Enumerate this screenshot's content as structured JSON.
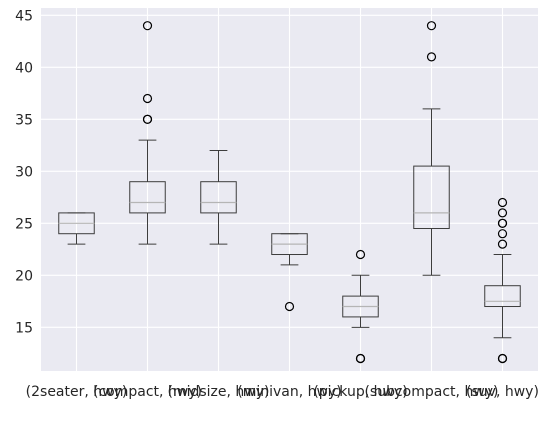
{
  "chart_data": {
    "type": "box",
    "title": "",
    "xlabel": "",
    "ylabel": "",
    "ylim": [
      10.8,
      45.7
    ],
    "yticks": [
      15,
      20,
      25,
      30,
      35,
      40,
      45
    ],
    "grid": true,
    "legend": "none",
    "colors": {
      "background": "#eaeaf2",
      "grid": "#ffffff",
      "box": "#3d3d3d",
      "median": "#b5b5b5"
    },
    "categories": [
      "(2seater, hwy)",
      "(compact, hwy)",
      "(midsize, hwy)",
      "(minivan, hwy)",
      "(pickup, hwy)",
      "(subcompact, hwy)",
      "(suv, hwy)"
    ],
    "boxes": [
      {
        "whislo": 23,
        "q1": 24,
        "median": 25,
        "q3": 26,
        "whishi": 26,
        "fliers": []
      },
      {
        "whislo": 23,
        "q1": 26,
        "median": 27,
        "q3": 29,
        "whishi": 33,
        "fliers": [
          35,
          35,
          37,
          44
        ]
      },
      {
        "whislo": 23,
        "q1": 26,
        "median": 27,
        "q3": 29,
        "whishi": 32,
        "fliers": []
      },
      {
        "whislo": 21,
        "q1": 22,
        "median": 23,
        "q3": 24,
        "whishi": 24,
        "fliers": [
          17
        ]
      },
      {
        "whislo": 15,
        "q1": 16,
        "median": 17,
        "q3": 18,
        "whishi": 20,
        "fliers": [
          12,
          12,
          22
        ]
      },
      {
        "whislo": 20,
        "q1": 24.5,
        "median": 26,
        "q3": 30.5,
        "whishi": 36,
        "fliers": [
          41,
          44
        ]
      },
      {
        "whislo": 14,
        "q1": 17,
        "median": 17.5,
        "q3": 19,
        "whishi": 22,
        "fliers": [
          12,
          12,
          23,
          24,
          25,
          25,
          26,
          27
        ]
      }
    ]
  }
}
